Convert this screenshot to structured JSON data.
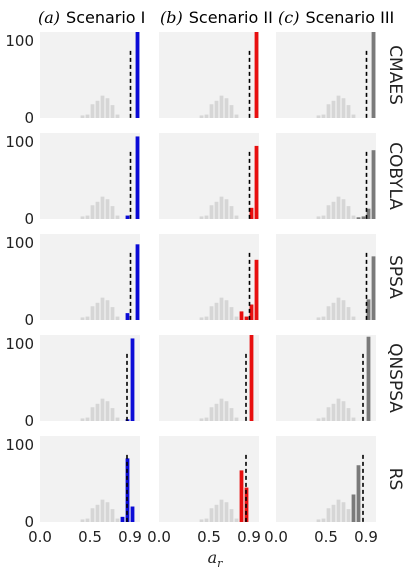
{
  "column_titles": [
    {
      "prefix": "(a)",
      "text": "Scenario I"
    },
    {
      "prefix": "(b)",
      "text": "Scenario II"
    },
    {
      "prefix": "(c)",
      "text": "Scenario III"
    }
  ],
  "row_labels": [
    "CMAES",
    "COBYLA",
    "SPSA",
    "QNSPSA",
    "RS"
  ],
  "xlabel": "a",
  "xlabel_sub": "r",
  "x_tick_labels": [
    "0.0",
    "0.5",
    "0.9"
  ],
  "y_tick_labels": [
    "0",
    "100"
  ],
  "colors": {
    "background": "#f2f2f2",
    "gray_bars": "#d6d6d6",
    "scenario_colors": [
      "#0a0ad6",
      "#e80f0f",
      "#7a7a7a"
    ],
    "dashed_line": "#000000"
  },
  "chart_data": {
    "type": "bar",
    "x_categories": [
      0.0,
      0.05,
      0.1,
      0.15,
      0.2,
      0.25,
      0.3,
      0.35,
      0.4,
      0.45,
      0.5,
      0.55,
      0.6,
      0.65,
      0.7,
      0.75,
      0.8,
      0.85,
      0.9,
      0.95
    ],
    "xlim": [
      0.0,
      1.0
    ],
    "ylim": [
      0,
      100
    ],
    "grid": false,
    "reference_distribution": [
      0,
      0,
      0,
      0,
      0,
      0,
      0,
      0,
      3,
      4,
      16,
      20,
      26,
      23,
      15,
      4,
      0,
      0,
      0,
      0
    ],
    "panels": [
      {
        "row": "CMAES",
        "scenario": "(a) Scenario I",
        "dashed_x": 0.905,
        "highlight": [
          {
            "x": 0.95,
            "value": 100
          }
        ]
      },
      {
        "row": "CMAES",
        "scenario": "(b) Scenario II",
        "dashed_x": 0.905,
        "highlight": [
          {
            "x": 0.95,
            "value": 100
          }
        ]
      },
      {
        "row": "CMAES",
        "scenario": "(c) Scenario III",
        "dashed_x": 0.905,
        "highlight": [
          {
            "x": 0.95,
            "value": 100
          }
        ]
      },
      {
        "row": "COBYLA",
        "scenario": "(a) Scenario I",
        "dashed_x": 0.905,
        "highlight": [
          {
            "x": 0.85,
            "value": 4
          },
          {
            "x": 0.95,
            "value": 96
          }
        ]
      },
      {
        "row": "COBYLA",
        "scenario": "(b) Scenario II",
        "dashed_x": 0.905,
        "highlight": [
          {
            "x": 0.9,
            "value": 13
          },
          {
            "x": 0.95,
            "value": 85
          }
        ]
      },
      {
        "row": "COBYLA",
        "scenario": "(c) Scenario III",
        "dashed_x": 0.905,
        "highlight": [
          {
            "x": 0.8,
            "value": 2
          },
          {
            "x": 0.85,
            "value": 3
          },
          {
            "x": 0.9,
            "value": 12
          },
          {
            "x": 0.95,
            "value": 80
          }
        ]
      },
      {
        "row": "SPSA",
        "scenario": "(a) Scenario I",
        "dashed_x": 0.905,
        "highlight": [
          {
            "x": 0.85,
            "value": 8
          },
          {
            "x": 0.95,
            "value": 88
          }
        ]
      },
      {
        "row": "SPSA",
        "scenario": "(b) Scenario II",
        "dashed_x": 0.905,
        "highlight": [
          {
            "x": 0.8,
            "value": 10
          },
          {
            "x": 0.85,
            "value": 4
          },
          {
            "x": 0.9,
            "value": 18
          },
          {
            "x": 0.95,
            "value": 70
          }
        ]
      },
      {
        "row": "SPSA",
        "scenario": "(c) Scenario III",
        "dashed_x": 0.905,
        "highlight": [
          {
            "x": 0.9,
            "value": 24
          },
          {
            "x": 0.95,
            "value": 74
          }
        ]
      },
      {
        "row": "QNSPSA",
        "scenario": "(a) Scenario I",
        "dashed_x": 0.87,
        "highlight": [
          {
            "x": 0.85,
            "value": 2
          },
          {
            "x": 0.9,
            "value": 96
          }
        ]
      },
      {
        "row": "QNSPSA",
        "scenario": "(b) Scenario II",
        "dashed_x": 0.87,
        "highlight": [
          {
            "x": 0.9,
            "value": 100
          }
        ]
      },
      {
        "row": "QNSPSA",
        "scenario": "(c) Scenario III",
        "dashed_x": 0.87,
        "highlight": [
          {
            "x": 0.9,
            "value": 98
          }
        ]
      },
      {
        "row": "RS",
        "scenario": "(a) Scenario I",
        "dashed_x": 0.87,
        "highlight": [
          {
            "x": 0.8,
            "value": 6
          },
          {
            "x": 0.85,
            "value": 74
          },
          {
            "x": 0.9,
            "value": 18
          }
        ]
      },
      {
        "row": "RS",
        "scenario": "(b) Scenario II",
        "dashed_x": 0.87,
        "highlight": [
          {
            "x": 0.8,
            "value": 60
          },
          {
            "x": 0.85,
            "value": 40
          }
        ]
      },
      {
        "row": "RS",
        "scenario": "(c) Scenario III",
        "dashed_x": 0.87,
        "highlight": [
          {
            "x": 0.75,
            "value": 32
          },
          {
            "x": 0.8,
            "value": 66
          }
        ]
      }
    ]
  }
}
